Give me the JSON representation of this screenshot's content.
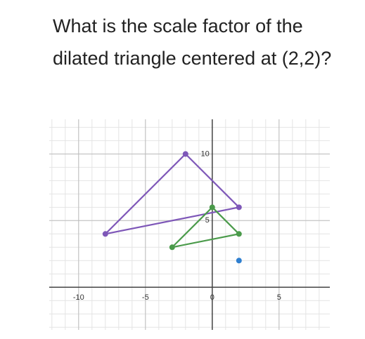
{
  "question": "What is the scale factor of the dilated triangle centered at (2,2)?",
  "chart_data": {
    "type": "line",
    "xlim": [
      -12.2,
      8.8
    ],
    "ylim": [
      -3.2,
      12.6
    ],
    "xticks": [
      -10,
      -5,
      0,
      5
    ],
    "yticks": [
      5,
      10
    ],
    "grid": true,
    "series": [
      {
        "color": "#7e57b8",
        "closed": true,
        "x": [
          -2,
          2,
          -8
        ],
        "values": [
          10,
          6,
          4
        ]
      },
      {
        "color": "#4a9a4a",
        "closed": true,
        "x": [
          0,
          2,
          -3
        ],
        "values": [
          6,
          4,
          3
        ]
      },
      {
        "color": "#2f7fd0",
        "closed": false,
        "x": [
          2
        ],
        "values": [
          2
        ]
      }
    ]
  }
}
